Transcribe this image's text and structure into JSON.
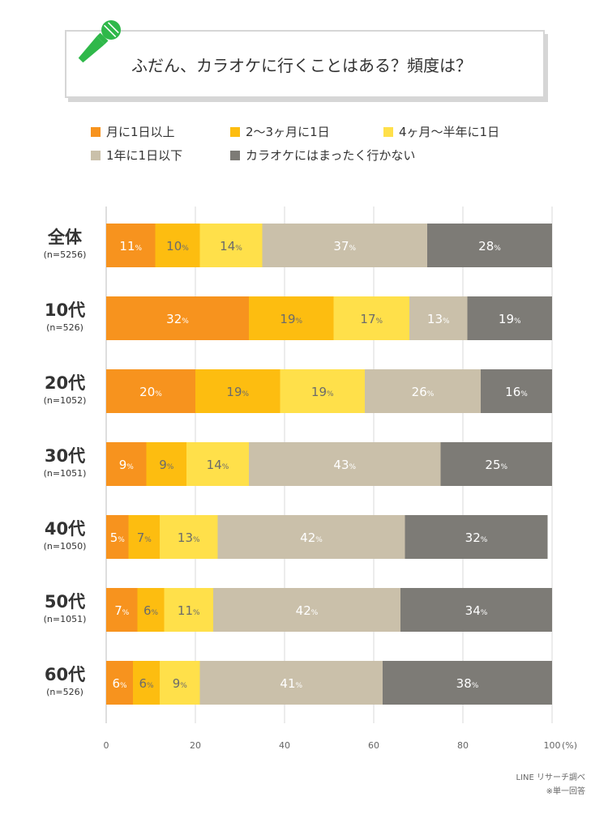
{
  "title": "ふだん、カラオケに行くことはある？頻度は？",
  "colors": {
    "c1": "#f7931e",
    "c2": "#fdbd10",
    "c3": "#ffe04a",
    "c4": "#cac0aa",
    "c5": "#7d7b76",
    "mic": "#2fb84a"
  },
  "legend": [
    {
      "label": "月に1日以上",
      "color": "#f7931e"
    },
    {
      "label": "2〜3ヶ月に1日",
      "color": "#fdbd10"
    },
    {
      "label": "4ヶ月〜半年に1日",
      "color": "#ffe04a"
    },
    {
      "label": "1年に1日以下",
      "color": "#cac0aa"
    },
    {
      "label": "カラオケにはまったく行かない",
      "color": "#7d7b76"
    }
  ],
  "chart_data": {
    "type": "bar",
    "orientation": "horizontal",
    "stacked": true,
    "title": "ふだん、カラオケに行くことはある？頻度は？",
    "categories": [
      "全体",
      "10代",
      "20代",
      "30代",
      "40代",
      "50代",
      "60代"
    ],
    "sample_sizes": [
      "(n=5256)",
      "(n=526)",
      "(n=1052)",
      "(n=1051)",
      "(n=1050)",
      "(n=1051)",
      "(n=526)"
    ],
    "series": [
      {
        "name": "月に1日以上",
        "values": [
          11,
          32,
          20,
          9,
          5,
          7,
          6
        ]
      },
      {
        "name": "2〜3ヶ月に1日",
        "values": [
          10,
          19,
          19,
          9,
          7,
          6,
          6
        ]
      },
      {
        "name": "4ヶ月〜半年に1日",
        "values": [
          14,
          17,
          19,
          14,
          13,
          11,
          9
        ]
      },
      {
        "name": "1年に1日以下",
        "values": [
          37,
          13,
          26,
          43,
          42,
          42,
          41
        ]
      },
      {
        "name": "カラオケにはまったく行かない",
        "values": [
          28,
          19,
          16,
          25,
          32,
          34,
          38
        ]
      }
    ],
    "value_suffix": "%",
    "xlim": [
      0,
      100
    ],
    "xticks": [
      0,
      20,
      40,
      60,
      80,
      100
    ],
    "xunit": "(%)",
    "grid": true
  },
  "source": "LINE リサーチ調べ",
  "note": "※単一回答"
}
